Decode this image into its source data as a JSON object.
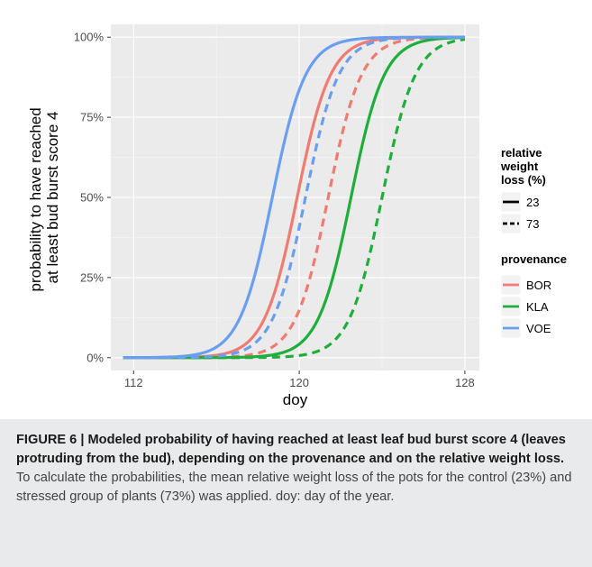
{
  "chart_data": {
    "type": "line",
    "xlabel": "doy",
    "ylabel_lines": [
      "probability to have reached",
      "at least bud burst score 4"
    ],
    "xlim": [
      110.9,
      128.7
    ],
    "ylim": [
      0,
      1
    ],
    "x_ticks": [
      112,
      120,
      128
    ],
    "x_tick_labels": [
      "112",
      "120",
      "128"
    ],
    "y_ticks": [
      0,
      0.25,
      0.5,
      0.75,
      1
    ],
    "y_tick_labels": [
      "0%",
      "25%",
      "50%",
      "75%",
      "100%"
    ],
    "x_range": [
      111.5,
      128
    ],
    "grid": true,
    "legend_position": "right",
    "legend": [
      {
        "title_lines": [
          "relative",
          "weight",
          "loss (%)"
        ],
        "entries": [
          "23",
          "73"
        ]
      },
      {
        "title_lines": [
          "provenance"
        ],
        "entries": [
          "BOR",
          "KLA",
          "VOE"
        ]
      }
    ],
    "series": [
      {
        "provenance": "BOR",
        "weight_loss": "23",
        "color": "#ef7b72",
        "dash": "solid",
        "midpoint": 119.9,
        "rate": 1.25
      },
      {
        "provenance": "BOR",
        "weight_loss": "73",
        "color": "#ef7b72",
        "dash": "dashed",
        "midpoint": 121.4,
        "rate": 1.25
      },
      {
        "provenance": "KLA",
        "weight_loss": "23",
        "color": "#1fae3c",
        "dash": "solid",
        "midpoint": 122.5,
        "rate": 1.25
      },
      {
        "provenance": "KLA",
        "weight_loss": "73",
        "color": "#1fae3c",
        "dash": "dashed",
        "midpoint": 124.0,
        "rate": 1.25
      },
      {
        "provenance": "VOE",
        "weight_loss": "23",
        "color": "#6a9ff0",
        "dash": "solid",
        "midpoint": 118.7,
        "rate": 1.25
      },
      {
        "provenance": "VOE",
        "weight_loss": "73",
        "color": "#6a9ff0",
        "dash": "dashed",
        "midpoint": 120.3,
        "rate": 1.25
      }
    ]
  },
  "caption": {
    "bold": "FIGURE 6 | Modeled probability of having reached at least leaf bud burst score 4 (leaves protruding from the bud), depending on the provenance and on the relative weight loss.",
    "text": " To calculate the probabilities, the mean relative weight loss of the pots for the control (23%) and stressed group of plants (73%) was applied. doy: day of the year."
  }
}
